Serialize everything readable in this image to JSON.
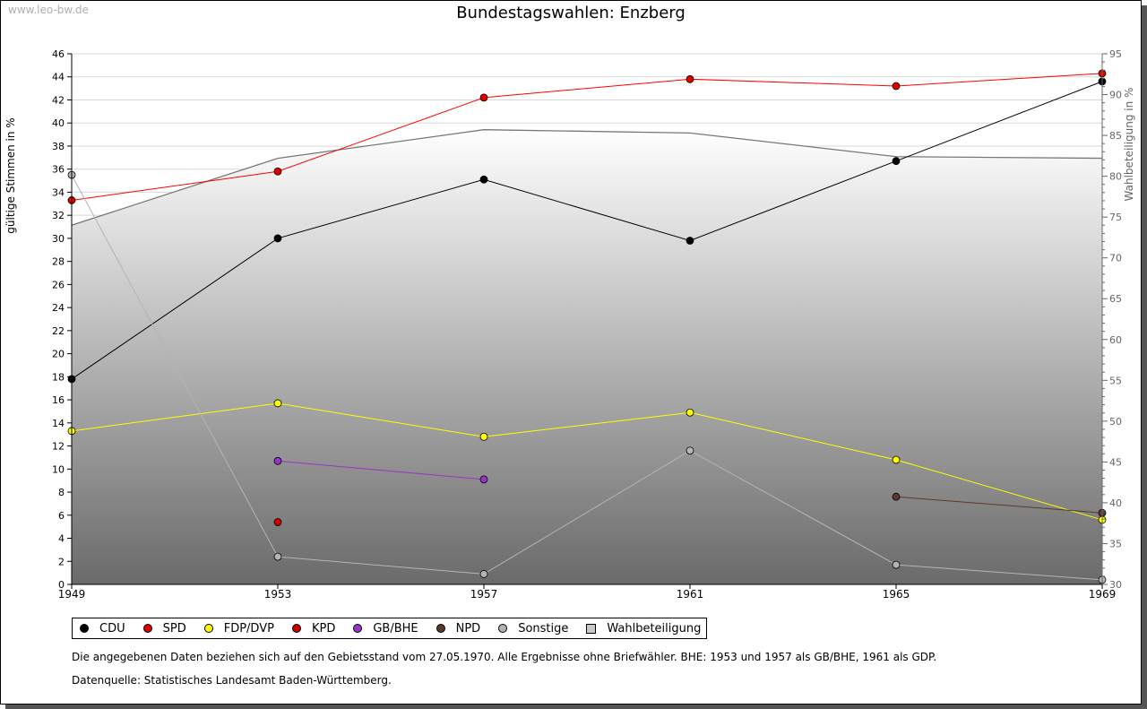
{
  "watermark": "www.leo-bw.de",
  "chart_data": {
    "type": "line",
    "title": "Bundestagswahlen: Enzberg",
    "ylabel": "gültige Stimmen in %",
    "y2label": "Wahlbeteiligung in %",
    "x": [
      1949,
      1953,
      1957,
      1961,
      1965,
      1969
    ],
    "ylim": [
      0,
      46
    ],
    "y2lim": [
      30,
      95
    ],
    "yticks": [
      0,
      2,
      4,
      6,
      8,
      10,
      12,
      14,
      16,
      18,
      20,
      22,
      24,
      26,
      28,
      30,
      32,
      34,
      36,
      38,
      40,
      42,
      44,
      46
    ],
    "y2ticks": [
      30,
      35,
      40,
      45,
      50,
      55,
      60,
      65,
      70,
      75,
      80,
      85,
      90,
      95
    ],
    "grid": true,
    "legend_position": "bottom",
    "series": [
      {
        "name": "CDU",
        "color": "#000000",
        "values": [
          17.8,
          30.0,
          35.1,
          29.8,
          36.7,
          43.6
        ]
      },
      {
        "name": "SPD",
        "color": "#ff0000",
        "marker": "#e00000",
        "values": [
          33.3,
          35.8,
          42.2,
          43.8,
          43.2,
          44.3
        ]
      },
      {
        "name": "FDP/DVP",
        "color": "#ffff00",
        "values": [
          13.3,
          15.7,
          12.8,
          14.9,
          10.8,
          5.6
        ]
      },
      {
        "name": "KPD",
        "color": "#cc0000",
        "values": [
          null,
          5.4,
          null,
          null,
          null,
          null
        ]
      },
      {
        "name": "GB/BHE",
        "color": "#9933cc",
        "values": [
          null,
          10.7,
          9.1,
          null,
          null,
          null
        ]
      },
      {
        "name": "NPD",
        "color": "#5a3a2a",
        "values": [
          null,
          null,
          null,
          null,
          7.6,
          6.2
        ]
      },
      {
        "name": "Sonstige",
        "color": "#b4b4b4",
        "values": [
          35.5,
          2.4,
          0.9,
          11.6,
          1.7,
          0.4
        ]
      }
    ],
    "turnout": {
      "name": "Wahlbeteiligung",
      "color": "#777777",
      "axis": "right",
      "values": [
        74.0,
        82.2,
        85.7,
        85.3,
        82.4,
        82.2
      ]
    }
  },
  "notes": [
    "Die angegebenen Daten beziehen sich auf den Gebietsstand vom 27.05.1970. Alle Ergebnisse ohne Briefwähler. BHE: 1953 und 1957 als GB/BHE, 1961 als GDP.",
    "Datenquelle: Statistisches Landesamt Baden-Württemberg."
  ]
}
